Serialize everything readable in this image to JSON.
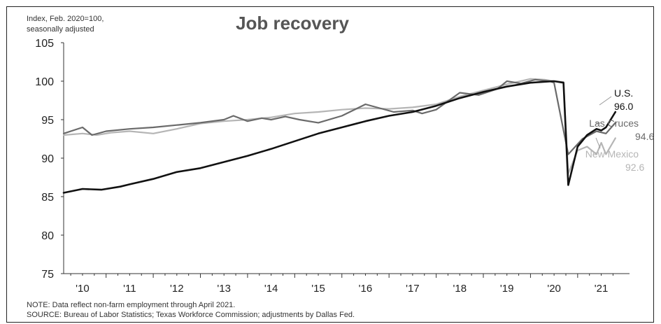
{
  "chart_data": {
    "type": "line",
    "title": "Job recovery",
    "ylabel_line1": "Index, Feb. 2020=100,",
    "ylabel_line2": "seasonally adjusted",
    "ylim": [
      75,
      105
    ],
    "yticks": [
      75,
      80,
      85,
      90,
      95,
      100,
      105
    ],
    "xlim": [
      2009.6,
      2021.6
    ],
    "xticks": [
      {
        "label": "'10",
        "x": 2010
      },
      {
        "label": "'11",
        "x": 2011
      },
      {
        "label": "'12",
        "x": 2012
      },
      {
        "label": "'13",
        "x": 2013
      },
      {
        "label": "'14",
        "x": 2014
      },
      {
        "label": "'15",
        "x": 2015
      },
      {
        "label": "'16",
        "x": 2016
      },
      {
        "label": "'17",
        "x": 2017
      },
      {
        "label": "'18",
        "x": 2018
      },
      {
        "label": "'19",
        "x": 2019
      },
      {
        "label": "'20",
        "x": 2020
      },
      {
        "label": "'21",
        "x": 2021
      }
    ],
    "grid": false,
    "series": [
      {
        "name": "U.S.",
        "end_label": "96.0",
        "color": "#111111",
        "points": [
          [
            2009.6,
            85.5
          ],
          [
            2010.0,
            86.0
          ],
          [
            2010.4,
            85.9
          ],
          [
            2010.8,
            86.3
          ],
          [
            2011.0,
            86.6
          ],
          [
            2011.5,
            87.3
          ],
          [
            2012.0,
            88.2
          ],
          [
            2012.5,
            88.7
          ],
          [
            2013.0,
            89.5
          ],
          [
            2013.5,
            90.3
          ],
          [
            2014.0,
            91.2
          ],
          [
            2014.5,
            92.2
          ],
          [
            2015.0,
            93.2
          ],
          [
            2015.5,
            94.0
          ],
          [
            2016.0,
            94.8
          ],
          [
            2016.5,
            95.5
          ],
          [
            2017.0,
            96.0
          ],
          [
            2017.5,
            96.8
          ],
          [
            2018.0,
            97.8
          ],
          [
            2018.5,
            98.6
          ],
          [
            2019.0,
            99.3
          ],
          [
            2019.5,
            99.8
          ],
          [
            2020.0,
            100.0
          ],
          [
            2020.2,
            99.8
          ],
          [
            2020.3,
            86.5
          ],
          [
            2020.5,
            91.5
          ],
          [
            2020.7,
            93.0
          ],
          [
            2020.9,
            93.8
          ],
          [
            2021.0,
            93.6
          ],
          [
            2021.1,
            94.0
          ],
          [
            2021.3,
            96.0
          ]
        ]
      },
      {
        "name": "Las Cruces",
        "end_label": "94.6",
        "color": "#6a6a6a",
        "points": [
          [
            2009.6,
            93.2
          ],
          [
            2010.0,
            94.0
          ],
          [
            2010.2,
            93.0
          ],
          [
            2010.5,
            93.5
          ],
          [
            2011.0,
            93.8
          ],
          [
            2011.5,
            94.0
          ],
          [
            2012.0,
            94.3
          ],
          [
            2012.5,
            94.6
          ],
          [
            2013.0,
            95.0
          ],
          [
            2013.2,
            95.5
          ],
          [
            2013.5,
            94.8
          ],
          [
            2013.8,
            95.2
          ],
          [
            2014.0,
            95.0
          ],
          [
            2014.3,
            95.4
          ],
          [
            2014.6,
            95.0
          ],
          [
            2015.0,
            94.6
          ],
          [
            2015.5,
            95.5
          ],
          [
            2016.0,
            97.0
          ],
          [
            2016.3,
            96.5
          ],
          [
            2016.6,
            96.0
          ],
          [
            2017.0,
            96.2
          ],
          [
            2017.2,
            95.8
          ],
          [
            2017.5,
            96.3
          ],
          [
            2018.0,
            98.5
          ],
          [
            2018.4,
            98.2
          ],
          [
            2018.8,
            99.0
          ],
          [
            2019.0,
            100.0
          ],
          [
            2019.3,
            99.7
          ],
          [
            2019.6,
            100.2
          ],
          [
            2019.9,
            100.0
          ],
          [
            2020.0,
            99.8
          ],
          [
            2020.3,
            90.5
          ],
          [
            2020.6,
            92.5
          ],
          [
            2020.9,
            93.5
          ],
          [
            2021.1,
            93.2
          ],
          [
            2021.3,
            94.6
          ]
        ]
      },
      {
        "name": "New Mexico",
        "end_label": "92.6",
        "color": "#b5b5b5",
        "points": [
          [
            2009.6,
            93.0
          ],
          [
            2010.0,
            93.2
          ],
          [
            2010.3,
            93.0
          ],
          [
            2010.6,
            93.3
          ],
          [
            2011.0,
            93.5
          ],
          [
            2011.5,
            93.2
          ],
          [
            2012.0,
            93.8
          ],
          [
            2012.5,
            94.5
          ],
          [
            2013.0,
            94.8
          ],
          [
            2013.5,
            95.0
          ],
          [
            2014.0,
            95.3
          ],
          [
            2014.5,
            95.8
          ],
          [
            2015.0,
            96.0
          ],
          [
            2015.5,
            96.3
          ],
          [
            2016.0,
            96.5
          ],
          [
            2016.5,
            96.4
          ],
          [
            2017.0,
            96.6
          ],
          [
            2017.5,
            97.0
          ],
          [
            2018.0,
            98.0
          ],
          [
            2018.5,
            98.8
          ],
          [
            2019.0,
            99.6
          ],
          [
            2019.5,
            100.3
          ],
          [
            2019.8,
            100.2
          ],
          [
            2020.0,
            100.0
          ],
          [
            2020.2,
            99.9
          ],
          [
            2020.3,
            88.0
          ],
          [
            2020.5,
            91.0
          ],
          [
            2020.7,
            91.5
          ],
          [
            2020.9,
            90.5
          ],
          [
            2021.0,
            92.0
          ],
          [
            2021.1,
            90.5
          ],
          [
            2021.3,
            92.6
          ]
        ]
      }
    ],
    "notes": [
      "NOTE: Data reflect non-farm employment through April 2021.",
      "SOURCE: Bureau of Labor Statistics; Texas Workforce Commission; adjustments by Dallas Fed."
    ]
  }
}
